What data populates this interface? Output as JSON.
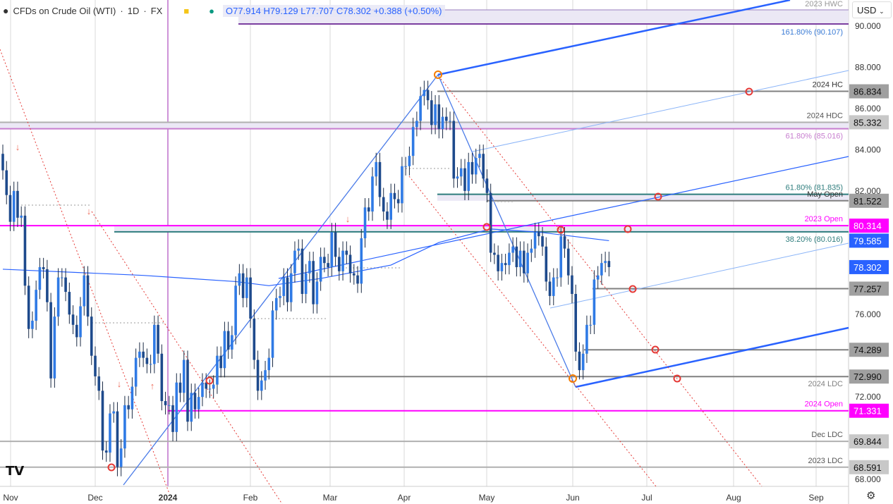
{
  "header": {
    "symbol": "CFDs on Crude Oil (WTI)",
    "interval": "1D",
    "exchange": "FX",
    "ohlc": "O77.914 H79.129 L77.707 C78.302 +0.388 (+0.50%)"
  },
  "currency": "USD",
  "colors": {
    "up": "#2f7ae5",
    "down": "#1e4a8c",
    "ma": "#2962ff",
    "magenta": "#ff00ff",
    "gray": "#808080"
  },
  "chart_data": {
    "type": "candlestick",
    "x_ticks": [
      "Nov",
      "Dec",
      "2024",
      "Feb",
      "Mar",
      "Apr",
      "May",
      "Jun",
      "Jul",
      "Aug",
      "Sep"
    ],
    "y_ticks": [
      "90.000",
      "88.000",
      "86.000",
      "84.000",
      "82.000",
      "76.000",
      "72.000",
      "68.000"
    ],
    "ylim": [
      67.6,
      90.8
    ],
    "closes": [
      83.0,
      81.8,
      80.5,
      82.0,
      80.7,
      80.8,
      77.4,
      75.3,
      75.7,
      77.2,
      78.3,
      78.2,
      76.6,
      72.9,
      75.9,
      77.8,
      77.8,
      77.1,
      76.0,
      75.5,
      74.9,
      76.4,
      77.9,
      75.9,
      74.0,
      73.0,
      72.3,
      69.4,
      69.3,
      71.2,
      71.3,
      68.6,
      69.5,
      71.6,
      71.4,
      72.5,
      73.9,
      74.2,
      73.9,
      73.6,
      73.6,
      75.5,
      74.1,
      71.8,
      71.6,
      71.6,
      70.3,
      72.7,
      72.2,
      73.8,
      70.8,
      72.2,
      71.4,
      72.0,
      72.7,
      72.4,
      72.4,
      72.6,
      74.0,
      73.4,
      75.2,
      74.3,
      75.0,
      77.4,
      78.0,
      76.8,
      77.8,
      75.8,
      73.8,
      72.3,
      72.8,
      73.3,
      73.9,
      76.2,
      76.8,
      76.9,
      77.8,
      76.6,
      78.0,
      79.1,
      79.2,
      77.0,
      78.0,
      78.6,
      76.5,
      77.6,
      78.8,
      78.5,
      78.3,
      80.0,
      78.8,
      78.1,
      79.1,
      78.9,
      78.0,
      77.9,
      77.5,
      79.7,
      81.2,
      81.0,
      82.7,
      83.4,
      81.7,
      81.0,
      80.6,
      81.9,
      81.6,
      81.4,
      83.2,
      83.2,
      83.7,
      85.1,
      85.4,
      86.6,
      86.9,
      86.4,
      85.2,
      86.2,
      85.0,
      85.6,
      85.4,
      85.4,
      82.6,
      82.7,
      83.1,
      82.0,
      83.4,
      82.8,
      83.6,
      83.8,
      82.6,
      81.9,
      79.0,
      78.9,
      78.1,
      78.5,
      78.4,
      79.0,
      79.3,
      78.3,
      79.1,
      78.0,
      79.0,
      79.2,
      80.0,
      79.8,
      79.3,
      77.6,
      76.9,
      77.8,
      77.8,
      79.8,
      79.2,
      77.9,
      77.0,
      74.2,
      73.3,
      74.1,
      75.5,
      75.5,
      77.7,
      77.9,
      78.5,
      78.6,
      78.302
    ],
    "moving_average": [
      [
        0,
        78.2
      ],
      [
        38,
        77.9
      ],
      [
        63,
        77.6
      ],
      [
        72,
        77.4
      ],
      [
        86,
        77.75
      ],
      [
        105,
        78.4
      ],
      [
        118,
        79.5
      ],
      [
        132,
        80.15
      ],
      [
        145,
        80.0
      ],
      [
        164,
        79.585
      ]
    ],
    "levels": [
      {
        "price": 86.834,
        "label": "2024 HC",
        "value": "86.834",
        "color": "#808080"
      },
      {
        "price": 85.332,
        "label": "2024 HDC",
        "value": "85.332",
        "color": "#b0b0b0"
      },
      {
        "price": 85.016,
        "label": "61.80% (85.016)",
        "color": "#c77dcf"
      },
      {
        "price": 81.835,
        "label": "61.80% (81.835)",
        "color": "#2e7d7d"
      },
      {
        "price": 81.522,
        "label": "May Open",
        "value": "81.522",
        "color": "#808080"
      },
      {
        "price": 80.314,
        "label": "2023 Open",
        "value": "80.314",
        "color": "#ff00ff"
      },
      {
        "price": 80.016,
        "label": "38.20% (80.016)",
        "color": "#2e7d7d"
      },
      {
        "price": 77.257,
        "value": "77.257",
        "color": "#808080"
      },
      {
        "price": 74.289,
        "value": "74.289",
        "color": "#808080"
      },
      {
        "price": 72.99,
        "label": "2024 LDC",
        "value": "72.990",
        "color": "#808080"
      },
      {
        "price": 71.331,
        "label": "2024 Open",
        "value": "71.331",
        "color": "#ff00ff"
      },
      {
        "price": 69.844,
        "label": "Dec LDC",
        "value": "69.844",
        "color": "#b0b0b0"
      },
      {
        "price": 68.591,
        "label": "2023 LDC",
        "value": "68.591",
        "color": "#b0b0b0"
      }
    ],
    "top_labels": {
      "hwc": "2023 HWC",
      "fib161": "161.80% (90.107)"
    },
    "last_price": "78.302",
    "ma_value": "79.585"
  }
}
